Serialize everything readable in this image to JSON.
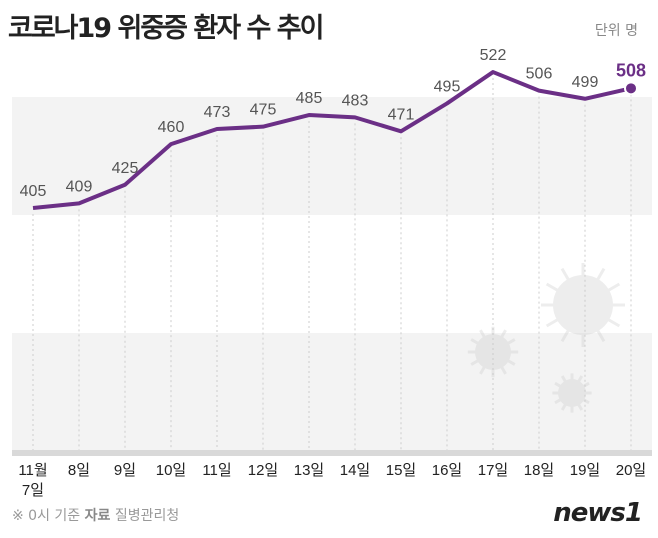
{
  "header": {
    "title": "코로나19 위중증 환자 수 추이",
    "unit": "단위 명"
  },
  "footer": {
    "note": "※ 0시 기준",
    "source_label": "자료",
    "source": "질병관리청",
    "logo": "news1"
  },
  "colors": {
    "line": "#6b2f86",
    "band": "#f3f3f3",
    "axis": "#d9d9d9"
  },
  "chart_data": {
    "type": "line",
    "title": "코로나19 위중증 환자 수 추이",
    "categories": [
      "11월 7일",
      "8일",
      "9일",
      "10일",
      "11일",
      "12일",
      "13일",
      "14일",
      "15일",
      "16일",
      "17일",
      "18일",
      "19일",
      "20일"
    ],
    "values": [
      405,
      409,
      425,
      460,
      473,
      475,
      485,
      483,
      471,
      495,
      522,
      506,
      499,
      508
    ],
    "data_labels": true,
    "grid": false,
    "highlight_last": true
  }
}
